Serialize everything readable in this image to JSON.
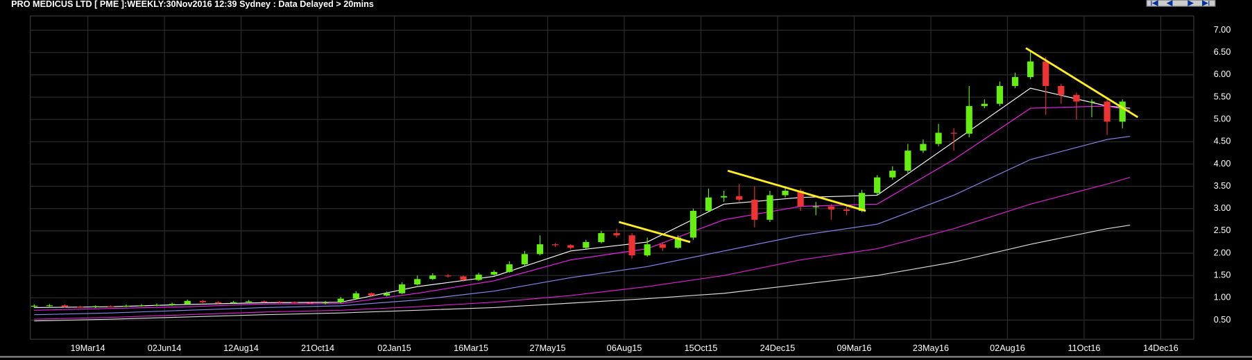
{
  "chart_data": {
    "type": "candlestick",
    "title": "PRO MEDICUS LTD [ PME ]:WEEKLY:30Nov2016 12:39 Sydney : Data Delayed > 20mins",
    "up_color": "#66ee11",
    "down_color": "#ee3333",
    "grid": true,
    "xlim": [
      -0.5,
      151.3
    ],
    "ylim": [
      0.07,
      7.32
    ],
    "xticks": [
      {
        "value": 7,
        "label": "19Mar14"
      },
      {
        "value": 17,
        "label": "02Jun14"
      },
      {
        "value": 27,
        "label": "12Aug14"
      },
      {
        "value": 37,
        "label": "21Oct14"
      },
      {
        "value": 47,
        "label": "02Jan15"
      },
      {
        "value": 57,
        "label": "16Mar15"
      },
      {
        "value": 67,
        "label": "27May15"
      },
      {
        "value": 77,
        "label": "06Aug15"
      },
      {
        "value": 87,
        "label": "15Oct15"
      },
      {
        "value": 97,
        "label": "24Dec15"
      },
      {
        "value": 107,
        "label": "09Mar16"
      },
      {
        "value": 117,
        "label": "23May16"
      },
      {
        "value": 127,
        "label": "02Aug16"
      },
      {
        "value": 137,
        "label": "11Oct16"
      },
      {
        "value": 147,
        "label": "14Dec16"
      }
    ],
    "yticks": [
      {
        "value": 0.5,
        "label": "0.50"
      },
      {
        "value": 1,
        "label": "1.00"
      },
      {
        "value": 1.5,
        "label": "1.50"
      },
      {
        "value": 2,
        "label": "2.00"
      },
      {
        "value": 2.5,
        "label": "2.50"
      },
      {
        "value": 3,
        "label": "3.00"
      },
      {
        "value": 3.5,
        "label": "3.50"
      },
      {
        "value": 4,
        "label": "4.00"
      },
      {
        "value": 4.5,
        "label": "4.50"
      },
      {
        "value": 5,
        "label": "5.00"
      },
      {
        "value": 5.5,
        "label": "5.50"
      },
      {
        "value": 6,
        "label": "6.00"
      },
      {
        "value": 6.5,
        "label": "6.50"
      },
      {
        "value": 7,
        "label": "7.00"
      }
    ],
    "x": [
      0,
      2,
      4,
      6,
      8,
      10,
      12,
      14,
      16,
      18,
      20,
      22,
      24,
      26,
      28,
      30,
      32,
      34,
      36,
      38,
      40,
      42,
      44,
      46,
      48,
      50,
      52,
      54,
      56,
      58,
      60,
      62,
      64,
      66,
      68,
      70,
      72,
      74,
      76,
      78,
      80,
      82,
      84,
      86,
      88,
      90,
      92,
      94,
      96,
      98,
      100,
      102,
      104,
      106,
      108,
      110,
      112,
      114,
      116,
      118,
      120,
      122,
      124,
      126,
      128,
      130,
      132,
      134,
      136,
      138,
      140,
      142
    ],
    "open": [
      0.8,
      0.82,
      0.83,
      0.8,
      0.79,
      0.81,
      0.8,
      0.82,
      0.83,
      0.84,
      0.86,
      0.93,
      0.9,
      0.88,
      0.9,
      0.92,
      0.91,
      0.9,
      0.89,
      0.88,
      0.9,
      0.98,
      1.1,
      1.05,
      1.1,
      1.3,
      1.42,
      1.5,
      1.48,
      1.4,
      1.52,
      1.58,
      1.75,
      1.98,
      2.2,
      2.18,
      2.12,
      2.25,
      2.45,
      2.4,
      1.95,
      2.2,
      2.12,
      2.35,
      2.95,
      3.25,
      3.28,
      3.2,
      2.75,
      3.3,
      3.4,
      3.05,
      3.05,
      2.98,
      2.95,
      3.35,
      3.7,
      3.85,
      4.3,
      4.45,
      4.7,
      4.68,
      5.3,
      5.35,
      5.75,
      5.95,
      6.3,
      5.75,
      5.55,
      5.4,
      5.4,
      4.95
    ],
    "high": [
      0.85,
      0.86,
      0.85,
      0.82,
      0.83,
      0.83,
      0.85,
      0.86,
      0.87,
      0.89,
      0.96,
      0.95,
      0.92,
      0.93,
      0.95,
      0.94,
      0.93,
      0.92,
      0.91,
      0.93,
      1.02,
      1.15,
      1.12,
      1.14,
      1.35,
      1.5,
      1.55,
      1.53,
      1.5,
      1.56,
      1.62,
      1.82,
      2.05,
      2.4,
      2.23,
      2.2,
      2.3,
      2.5,
      2.55,
      2.45,
      2.35,
      2.25,
      2.4,
      3.0,
      3.45,
      3.4,
      3.55,
      3.5,
      3.4,
      3.5,
      3.45,
      3.15,
      3.1,
      3.05,
      3.42,
      3.75,
      3.95,
      4.45,
      4.55,
      4.9,
      4.8,
      5.75,
      5.45,
      5.85,
      6.05,
      6.55,
      6.4,
      5.8,
      5.6,
      5.45,
      5.45,
      5.45
    ],
    "low": [
      0.78,
      0.8,
      0.78,
      0.77,
      0.77,
      0.78,
      0.79,
      0.8,
      0.81,
      0.82,
      0.85,
      0.88,
      0.86,
      0.86,
      0.88,
      0.89,
      0.88,
      0.87,
      0.86,
      0.85,
      0.88,
      0.96,
      1.02,
      1.03,
      1.08,
      1.28,
      1.4,
      1.45,
      1.36,
      1.38,
      1.5,
      1.56,
      1.72,
      1.95,
      2.14,
      2.08,
      2.1,
      2.22,
      2.35,
      1.88,
      1.92,
      2.05,
      2.1,
      2.3,
      2.92,
      3.15,
      3.15,
      2.58,
      2.7,
      3.25,
      2.95,
      2.85,
      2.75,
      2.85,
      2.92,
      3.3,
      3.65,
      3.8,
      4.25,
      4.4,
      4.3,
      4.6,
      5.25,
      5.3,
      5.7,
      5.9,
      5.1,
      5.35,
      5.0,
      5.05,
      4.65,
      4.8
    ],
    "close": [
      0.82,
      0.83,
      0.8,
      0.79,
      0.81,
      0.8,
      0.82,
      0.83,
      0.84,
      0.86,
      0.93,
      0.9,
      0.88,
      0.9,
      0.92,
      0.91,
      0.9,
      0.89,
      0.88,
      0.9,
      0.98,
      1.1,
      1.05,
      1.1,
      1.3,
      1.42,
      1.5,
      1.48,
      1.4,
      1.52,
      1.58,
      1.75,
      1.98,
      2.2,
      2.18,
      2.12,
      2.25,
      2.45,
      2.4,
      1.95,
      2.2,
      2.12,
      2.35,
      2.95,
      3.25,
      3.28,
      3.2,
      2.75,
      3.3,
      3.4,
      3.05,
      3.05,
      2.98,
      2.95,
      3.35,
      3.7,
      3.85,
      4.3,
      4.45,
      4.7,
      4.68,
      5.3,
      5.35,
      5.75,
      5.95,
      6.3,
      5.75,
      5.55,
      5.4,
      5.4,
      4.95,
      5.4
    ],
    "ma_x": [
      0,
      10,
      20,
      30,
      40,
      50,
      60,
      70,
      80,
      90,
      100,
      110,
      120,
      130,
      140,
      143
    ],
    "moving_averages": [
      {
        "color": "#ffffff",
        "values": [
          0.78,
          0.8,
          0.85,
          0.89,
          0.9,
          1.25,
          1.48,
          2.05,
          2.25,
          3.1,
          3.25,
          3.3,
          4.5,
          5.7,
          5.3,
          5.25
        ]
      },
      {
        "color": "#ee22ee",
        "values": [
          0.72,
          0.76,
          0.8,
          0.86,
          0.87,
          1.1,
          1.38,
          1.85,
          2.1,
          2.75,
          3.05,
          3.1,
          4.1,
          5.25,
          5.3,
          5.2
        ]
      },
      {
        "color": "#8888ee",
        "values": [
          0.62,
          0.66,
          0.72,
          0.78,
          0.82,
          0.95,
          1.15,
          1.45,
          1.7,
          2.05,
          2.4,
          2.65,
          3.3,
          4.1,
          4.55,
          4.62
        ]
      },
      {
        "color": "#dd22cc",
        "values": [
          0.52,
          0.56,
          0.62,
          0.68,
          0.72,
          0.8,
          0.9,
          1.05,
          1.25,
          1.5,
          1.85,
          2.1,
          2.55,
          3.1,
          3.55,
          3.7
        ]
      },
      {
        "color": "#dddddd",
        "values": [
          0.48,
          0.52,
          0.57,
          0.62,
          0.66,
          0.72,
          0.78,
          0.88,
          0.98,
          1.1,
          1.3,
          1.5,
          1.8,
          2.2,
          2.55,
          2.63
        ]
      }
    ],
    "trendline_color": "#ffee22",
    "trendlines": [
      {
        "x": [
          76.3,
          85.6
        ],
        "y": [
          2.7,
          2.25
        ]
      },
      {
        "x": [
          90.5,
          108.5
        ],
        "y": [
          3.85,
          2.95
        ]
      },
      {
        "x": [
          129.4,
          144.0
        ],
        "y": [
          6.6,
          5.05
        ]
      }
    ]
  }
}
